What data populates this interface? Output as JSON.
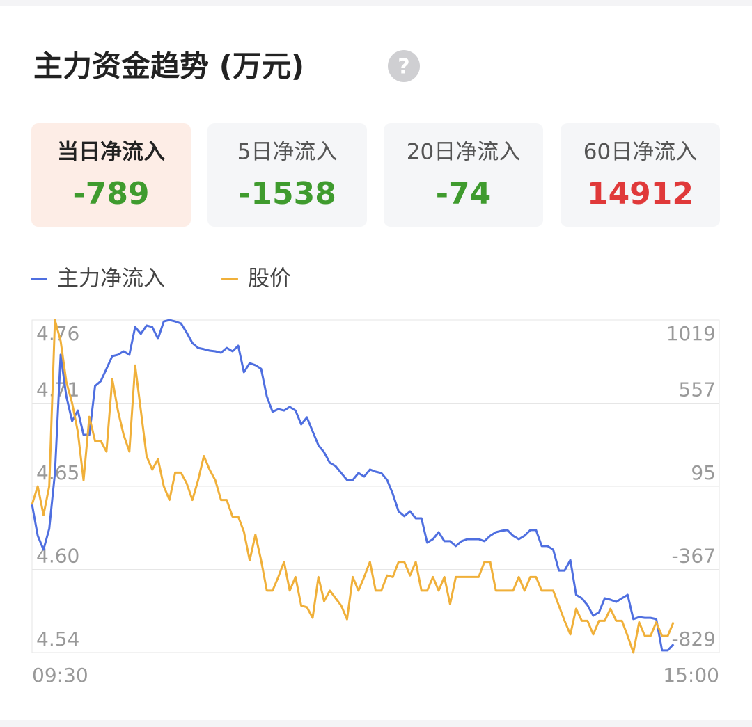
{
  "header": {
    "title": "主力资金趋势 (万元)",
    "help_icon": "?"
  },
  "cards": [
    {
      "label": "当日净流入",
      "value": -789,
      "color": "#3f9b2e",
      "active": true
    },
    {
      "label": "5日净流入",
      "value": -1538,
      "color": "#3f9b2e",
      "active": false
    },
    {
      "label": "20日净流入",
      "value": -74,
      "color": "#3f9b2e",
      "active": false
    },
    {
      "label": "60日净流入",
      "value": 14912,
      "color": "#e0393a",
      "active": false
    }
  ],
  "chart_data": {
    "type": "line",
    "categories": [
      "09:30",
      null,
      null,
      null,
      null,
      null,
      null,
      null,
      null,
      null,
      null,
      null,
      null,
      null,
      null,
      null,
      null,
      null,
      null,
      null,
      null,
      null,
      null,
      null,
      null,
      null,
      null,
      null,
      null,
      null,
      null,
      null,
      null,
      null,
      null,
      null,
      null,
      null,
      null,
      null,
      null,
      null,
      null,
      null,
      null,
      null,
      null,
      null,
      null,
      null,
      null,
      null,
      null,
      null,
      null,
      null,
      null,
      null,
      null,
      null,
      null,
      null,
      null,
      null,
      null,
      null,
      null,
      null,
      null,
      null,
      null,
      null,
      null,
      null,
      null,
      null,
      null,
      null,
      null,
      null,
      null,
      null,
      null,
      null,
      null,
      null,
      null,
      null,
      null,
      null,
      null,
      null,
      null,
      null,
      null,
      null,
      null,
      null,
      null,
      null,
      null,
      null,
      null,
      null,
      null,
      null,
      null,
      null,
      null,
      null,
      null,
      null,
      null,
      null,
      null,
      null,
      null,
      null,
      null,
      null,
      "15:00"
    ],
    "series": [
      {
        "name": "主力净流入",
        "color": "#4f6fe0",
        "axis": "y2",
        "values": [
          -6,
          -180,
          -257,
          -141,
          169,
          826,
          594,
          458,
          516,
          381,
          381,
          652,
          679,
          748,
          818,
          826,
          845,
          826,
          980,
          942,
          988,
          980,
          915,
          1011,
          1019,
          1011,
          1000,
          949,
          891,
          864,
          857,
          849,
          845,
          837,
          864,
          845,
          876,
          729,
          779,
          768,
          748,
          594,
          509,
          524,
          516,
          536,
          516,
          439,
          478,
          400,
          323,
          284,
          226,
          207,
          169,
          130,
          130,
          169,
          149,
          188,
          176,
          169,
          130,
          52,
          -44,
          -71,
          -44,
          -83,
          -83,
          -218,
          -199,
          -160,
          -210,
          -210,
          -237,
          -210,
          -199,
          -199,
          -199,
          -210,
          -180,
          -160,
          -152,
          -148,
          -180,
          -199,
          -180,
          -148,
          -148,
          -237,
          -237,
          -257,
          -373,
          -373,
          -315,
          -508,
          -527,
          -566,
          -624,
          -605,
          -527,
          -535,
          -547,
          -527,
          -508,
          -643,
          -632,
          -636,
          -636,
          -643,
          -817,
          -817,
          -783,
          null,
          null,
          null,
          null,
          null,
          null,
          null,
          null
        ]
      },
      {
        "name": "股价",
        "color": "#f0b03a",
        "values": [
          4.638,
          4.65,
          4.631,
          4.65,
          4.76,
          4.746,
          4.719,
          4.705,
          4.686,
          4.654,
          4.696,
          4.68,
          4.68,
          4.673,
          4.721,
          4.7,
          4.684,
          4.673,
          4.73,
          4.7,
          4.67,
          4.661,
          4.668,
          4.65,
          4.641,
          4.659,
          4.659,
          4.652,
          4.641,
          4.654,
          4.67,
          4.661,
          4.654,
          4.641,
          4.641,
          4.63,
          4.63,
          4.62,
          4.601,
          4.618,
          4.601,
          4.581,
          4.581,
          4.59,
          4.6,
          4.581,
          4.59,
          4.571,
          4.57,
          4.563,
          4.59,
          4.574,
          4.581,
          4.576,
          4.571,
          4.562,
          4.59,
          4.581,
          4.59,
          4.6,
          4.581,
          4.581,
          4.591,
          4.59,
          4.6,
          4.6,
          4.591,
          4.6,
          4.581,
          4.581,
          4.59,
          4.581,
          4.59,
          4.572,
          4.59,
          4.59,
          4.59,
          4.59,
          4.59,
          4.6,
          4.6,
          4.581,
          4.581,
          4.581,
          4.581,
          4.59,
          4.581,
          4.59,
          4.59,
          4.581,
          4.581,
          4.581,
          4.571,
          4.561,
          4.552,
          4.569,
          4.561,
          4.561,
          4.552,
          4.561,
          4.561,
          4.569,
          4.561,
          4.561,
          4.551,
          4.54,
          4.56,
          4.551,
          4.551,
          4.56,
          4.551,
          4.551,
          4.56,
          null,
          null,
          null,
          null,
          null,
          null,
          null,
          null
        ]
      }
    ],
    "ylim": [
      4.54,
      4.76
    ],
    "yticks": [
      4.54,
      {
        "value": 4.595,
        "label": "4.60"
      },
      4.65,
      {
        "value": 4.705,
        "label": "4.71"
      },
      4.76
    ],
    "y2lim": [
      -829,
      1019
    ],
    "y2ticks": [
      -829,
      -367,
      95,
      557,
      1019
    ],
    "grid": true
  }
}
